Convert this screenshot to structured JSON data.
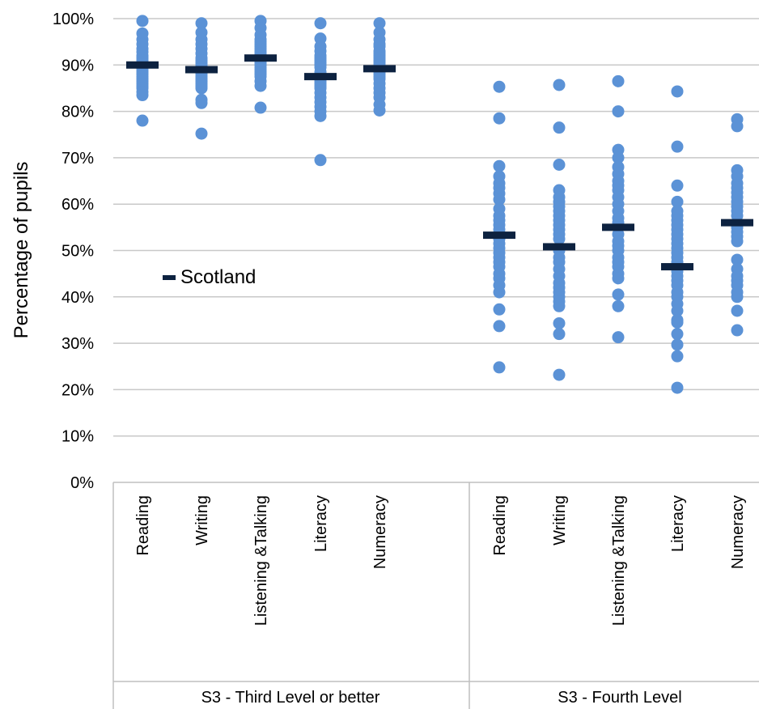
{
  "chart_data": {
    "type": "scatter",
    "ylabel": "Percentage of pupils",
    "ylim": [
      0,
      100
    ],
    "yticks": [
      "0%",
      "10%",
      "20%",
      "30%",
      "40%",
      "50%",
      "60%",
      "70%",
      "80%",
      "90%",
      "100%"
    ],
    "grid": true,
    "legend": {
      "label": "Scotland",
      "position": "middle-left",
      "color": "#0d2240"
    },
    "point_color": "#5b92d6",
    "marker_color": "#0d2240",
    "groups": [
      {
        "label": "S3 - Third Level or better",
        "categories": [
          {
            "name": "Reading",
            "scotland": 90,
            "points": [
              99.5,
              96.8,
              95.5,
              94.5,
              93.5,
              92.8,
              92,
              91.5,
              91,
              90.5,
              89.5,
              89,
              88.5,
              88,
              87.5,
              87,
              86.5,
              86,
              85.5,
              85,
              84.2,
              83.5,
              78
            ]
          },
          {
            "name": "Writing",
            "scotland": 89,
            "points": [
              99,
              97,
              95.5,
              94.5,
              93.5,
              92.5,
              91.5,
              91,
              90.5,
              90,
              89.5,
              88.5,
              88,
              87.5,
              87,
              86.5,
              86,
              85.5,
              85,
              82.5,
              81.8,
              75.2
            ]
          },
          {
            "name": "Listening &Talking",
            "scotland": 91.5,
            "points": [
              99.5,
              98,
              96.5,
              95.5,
              95,
              94.5,
              94,
              93.5,
              93,
              92.5,
              92,
              91,
              90.5,
              90,
              89.5,
              89,
              88.5,
              88,
              87.5,
              86.5,
              85.5,
              80.8
            ]
          },
          {
            "name": "Literacy",
            "scotland": 87.5,
            "points": [
              99,
              95.7,
              94,
              93,
              92,
              91.5,
              91,
              90.5,
              90,
              89.5,
              88.5,
              88,
              87,
              86.5,
              86,
              85.5,
              85,
              84,
              83,
              82,
              81,
              80,
              79,
              69.5
            ]
          },
          {
            "name": "Numeracy",
            "scotland": 89.2,
            "points": [
              99,
              97,
              95.5,
              94.5,
              94,
              93,
              92.5,
              92,
              91.5,
              91,
              90.5,
              90,
              89.5,
              88.5,
              88,
              87.5,
              87,
              86,
              85,
              84,
              83,
              81.5,
              80.2
            ]
          }
        ]
      },
      {
        "label": "S3 - Fourth Level",
        "categories": [
          {
            "name": "Reading",
            "scotland": 53.3,
            "points": [
              85.3,
              78.5,
              68.2,
              66,
              64.5,
              63.5,
              62.3,
              61,
              59,
              57.5,
              56.5,
              55.5,
              54.5,
              52.5,
              51.5,
              50.5,
              49.5,
              48.5,
              47.5,
              46.5,
              45,
              44,
              42.5,
              41,
              37.3,
              33.7,
              24.8
            ]
          },
          {
            "name": "Writing",
            "scotland": 50.8,
            "points": [
              85.7,
              76.5,
              68.5,
              63,
              61.5,
              60.5,
              59.5,
              58.5,
              57.5,
              56.5,
              55.5,
              54.5,
              53.5,
              52.5,
              50,
              48.5,
              47.5,
              46,
              44.5,
              43,
              42,
              41,
              40,
              39,
              38,
              34.3,
              32,
              23.2
            ]
          },
          {
            "name": "Listening &Talking",
            "scotland": 55,
            "points": [
              86.5,
              80,
              71.7,
              70,
              68,
              66.5,
              65,
              64,
              63,
              61.5,
              60,
              58.5,
              57,
              56,
              53.5,
              52,
              51,
              50,
              48.5,
              47.5,
              46.5,
              45,
              44,
              40.5,
              38,
              31.3
            ]
          },
          {
            "name": "Literacy",
            "scotland": 46.5,
            "points": [
              84.3,
              72.4,
              64,
              60.5,
              58.5,
              57.5,
              56.5,
              55.5,
              54.5,
              53.5,
              52.5,
              51.5,
              50.5,
              49.5,
              48.5,
              47.5,
              45.5,
              44.5,
              43.5,
              42.5,
              41,
              40,
              38.5,
              37,
              35,
              34.5,
              32,
              29.7,
              27.2,
              20.4
            ]
          },
          {
            "name": "Numeracy",
            "scotland": 56,
            "points": [
              78.3,
              76.8,
              67.3,
              66,
              64.5,
              63.5,
              62.5,
              61.5,
              60.5,
              59.5,
              58.5,
              57.5,
              55,
              54,
              53,
              52,
              48,
              46,
              44.5,
              43.5,
              42.5,
              41,
              40,
              37,
              32.8
            ]
          }
        ]
      }
    ]
  }
}
